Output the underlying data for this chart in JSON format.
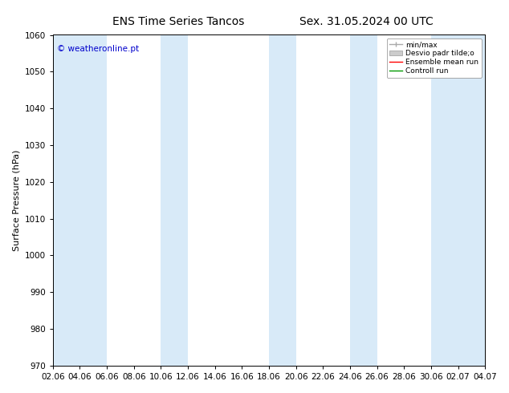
{
  "title1": "ENS Time Series Tancos",
  "title2": "Sex. 31.05.2024 00 UTC",
  "ylabel": "Surface Pressure (hPa)",
  "ylim": [
    970,
    1060
  ],
  "yticks": [
    970,
    980,
    990,
    1000,
    1010,
    1020,
    1030,
    1040,
    1050,
    1060
  ],
  "x_labels": [
    "02.06",
    "04.06",
    "06.06",
    "08.06",
    "10.06",
    "12.06",
    "14.06",
    "16.06",
    "18.06",
    "20.06",
    "22.06",
    "24.06",
    "26.06",
    "28.06",
    "30.06",
    "02.07",
    "04.07"
  ],
  "num_xticks": 17,
  "watermark": "© weatheronline.pt",
  "watermark_color": "#0000cc",
  "background_color": "#ffffff",
  "plot_bg_color": "#ffffff",
  "shaded_col_indices": [
    0,
    1,
    4,
    8,
    11,
    14,
    15,
    16
  ],
  "shaded_bg_color": "#d8eaf8",
  "legend_labels": [
    "min/max",
    "Desvio padr tilde;o",
    "Ensemble mean run",
    "Controll run"
  ],
  "legend_colors": [
    "#aaaaaa",
    "#cccccc",
    "#ff0000",
    "#009900"
  ],
  "title_fontsize": 10,
  "label_fontsize": 8,
  "tick_fontsize": 7.5
}
